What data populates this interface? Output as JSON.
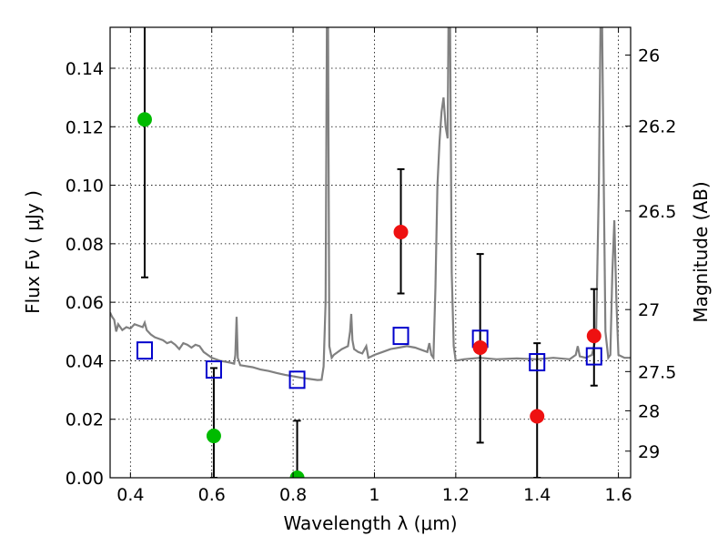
{
  "chart_data": {
    "type": "scatter",
    "xlabel": "Wavelength  λ (μm)",
    "ylabel": "Flux  Fν  ( μJy )",
    "y2label": "Magnitude (AB)",
    "xlim": [
      0.35,
      1.63
    ],
    "ylim": [
      0.0,
      0.154
    ],
    "grid": true,
    "x_ticks": [
      {
        "value": 0.4,
        "label": "0.4"
      },
      {
        "value": 0.6,
        "label": "0.6"
      },
      {
        "value": 0.8,
        "label": "0.8"
      },
      {
        "value": 1.0,
        "label": "1"
      },
      {
        "value": 1.2,
        "label": "1.2"
      },
      {
        "value": 1.4,
        "label": "1.4"
      },
      {
        "value": 1.6,
        "label": "1.6"
      }
    ],
    "y_ticks": [
      {
        "value": 0.0,
        "label": "0.00"
      },
      {
        "value": 0.02,
        "label": "0.02"
      },
      {
        "value": 0.04,
        "label": "0.04"
      },
      {
        "value": 0.06,
        "label": "0.06"
      },
      {
        "value": 0.08,
        "label": "0.08"
      },
      {
        "value": 0.1,
        "label": "0.10"
      },
      {
        "value": 0.12,
        "label": "0.12"
      },
      {
        "value": 0.14,
        "label": "0.14"
      }
    ],
    "y2_ticks": [
      {
        "flux": 0.1445,
        "label": "26"
      },
      {
        "flux": 0.1202,
        "label": "26.2"
      },
      {
        "flux": 0.0912,
        "label": "26.5"
      },
      {
        "flux": 0.0575,
        "label": "27"
      },
      {
        "flux": 0.0363,
        "label": "27.5"
      },
      {
        "flux": 0.0229,
        "label": "28"
      },
      {
        "flux": 0.0091,
        "label": "29"
      }
    ],
    "colors": {
      "sed": "#808080",
      "model_box": "#0000cc",
      "optical_detection": "#00bb00",
      "nir_detection": "#ee1111",
      "errorbar": "#000000"
    },
    "sed_curve": [
      [
        0.35,
        0.0565
      ],
      [
        0.355,
        0.055
      ],
      [
        0.36,
        0.054
      ],
      [
        0.365,
        0.05
      ],
      [
        0.37,
        0.0525
      ],
      [
        0.38,
        0.0505
      ],
      [
        0.39,
        0.0515
      ],
      [
        0.4,
        0.051
      ],
      [
        0.41,
        0.0525
      ],
      [
        0.42,
        0.052
      ],
      [
        0.43,
        0.0515
      ],
      [
        0.435,
        0.053
      ],
      [
        0.44,
        0.0505
      ],
      [
        0.45,
        0.049
      ],
      [
        0.46,
        0.048
      ],
      [
        0.48,
        0.047
      ],
      [
        0.49,
        0.046
      ],
      [
        0.5,
        0.0465
      ],
      [
        0.51,
        0.0455
      ],
      [
        0.52,
        0.044
      ],
      [
        0.53,
        0.046
      ],
      [
        0.54,
        0.0455
      ],
      [
        0.55,
        0.0445
      ],
      [
        0.56,
        0.0455
      ],
      [
        0.57,
        0.045
      ],
      [
        0.58,
        0.043
      ],
      [
        0.59,
        0.042
      ],
      [
        0.6,
        0.041
      ],
      [
        0.62,
        0.04
      ],
      [
        0.64,
        0.0395
      ],
      [
        0.655,
        0.039
      ],
      [
        0.658,
        0.042
      ],
      [
        0.661,
        0.055
      ],
      [
        0.664,
        0.041
      ],
      [
        0.67,
        0.0385
      ],
      [
        0.7,
        0.0378
      ],
      [
        0.72,
        0.037
      ],
      [
        0.74,
        0.0365
      ],
      [
        0.76,
        0.0358
      ],
      [
        0.78,
        0.0352
      ],
      [
        0.8,
        0.0347
      ],
      [
        0.82,
        0.0342
      ],
      [
        0.84,
        0.0338
      ],
      [
        0.86,
        0.0334
      ],
      [
        0.87,
        0.0335
      ],
      [
        0.875,
        0.038
      ],
      [
        0.88,
        0.06
      ],
      [
        0.883,
        0.154
      ],
      [
        0.886,
        0.154
      ],
      [
        0.889,
        0.045
      ],
      [
        0.895,
        0.041
      ],
      [
        0.9,
        0.042
      ],
      [
        0.92,
        0.044
      ],
      [
        0.935,
        0.045
      ],
      [
        0.94,
        0.05
      ],
      [
        0.943,
        0.056
      ],
      [
        0.946,
        0.047
      ],
      [
        0.95,
        0.044
      ],
      [
        0.96,
        0.043
      ],
      [
        0.97,
        0.0425
      ],
      [
        0.98,
        0.045
      ],
      [
        0.985,
        0.041
      ],
      [
        1.0,
        0.042
      ],
      [
        1.02,
        0.043
      ],
      [
        1.04,
        0.044
      ],
      [
        1.06,
        0.0445
      ],
      [
        1.08,
        0.045
      ],
      [
        1.1,
        0.0445
      ],
      [
        1.12,
        0.0435
      ],
      [
        1.13,
        0.043
      ],
      [
        1.135,
        0.046
      ],
      [
        1.14,
        0.042
      ],
      [
        1.145,
        0.041
      ],
      [
        1.15,
        0.065
      ],
      [
        1.155,
        0.1
      ],
      [
        1.16,
        0.115
      ],
      [
        1.165,
        0.125
      ],
      [
        1.17,
        0.13
      ],
      [
        1.175,
        0.12
      ],
      [
        1.18,
        0.116
      ],
      [
        1.182,
        0.154
      ],
      [
        1.186,
        0.154
      ],
      [
        1.19,
        0.07
      ],
      [
        1.195,
        0.045
      ],
      [
        1.2,
        0.04
      ],
      [
        1.22,
        0.0405
      ],
      [
        1.26,
        0.041
      ],
      [
        1.3,
        0.0405
      ],
      [
        1.35,
        0.0408
      ],
      [
        1.4,
        0.0405
      ],
      [
        1.44,
        0.041
      ],
      [
        1.48,
        0.0405
      ],
      [
        1.495,
        0.042
      ],
      [
        1.5,
        0.045
      ],
      [
        1.505,
        0.0415
      ],
      [
        1.52,
        0.041
      ],
      [
        1.535,
        0.042
      ],
      [
        1.545,
        0.048
      ],
      [
        1.552,
        0.1
      ],
      [
        1.556,
        0.154
      ],
      [
        1.56,
        0.154
      ],
      [
        1.564,
        0.1
      ],
      [
        1.568,
        0.05
      ],
      [
        1.575,
        0.041
      ],
      [
        1.58,
        0.042
      ],
      [
        1.585,
        0.07
      ],
      [
        1.59,
        0.088
      ],
      [
        1.595,
        0.06
      ],
      [
        1.6,
        0.042
      ],
      [
        1.615,
        0.041
      ],
      [
        1.63,
        0.041
      ]
    ],
    "model_boxes": [
      {
        "x": 0.435,
        "y": 0.0435
      },
      {
        "x": 0.605,
        "y": 0.037
      },
      {
        "x": 0.81,
        "y": 0.0335
      },
      {
        "x": 1.065,
        "y": 0.0485
      },
      {
        "x": 1.26,
        "y": 0.0475
      },
      {
        "x": 1.4,
        "y": 0.0395
      },
      {
        "x": 1.54,
        "y": 0.0415
      }
    ],
    "optical_detections": [
      {
        "x": 0.435,
        "y": 0.1225,
        "err_low": 0.0685,
        "err_high": 0.16
      },
      {
        "x": 0.605,
        "y": 0.0143,
        "err_low": 0.0,
        "err_high": 0.0375
      },
      {
        "x": 0.81,
        "y": 0.0,
        "err_low": 0.0,
        "err_high": 0.0195
      }
    ],
    "nir_detections": [
      {
        "x": 1.065,
        "y": 0.084,
        "err_low": 0.063,
        "err_high": 0.1055
      },
      {
        "x": 1.26,
        "y": 0.0445,
        "err_low": 0.012,
        "err_high": 0.0765
      },
      {
        "x": 1.4,
        "y": 0.021,
        "err_low": 0.0,
        "err_high": 0.046
      },
      {
        "x": 1.54,
        "y": 0.0485,
        "err_low": 0.0315,
        "err_high": 0.0645
      }
    ]
  }
}
